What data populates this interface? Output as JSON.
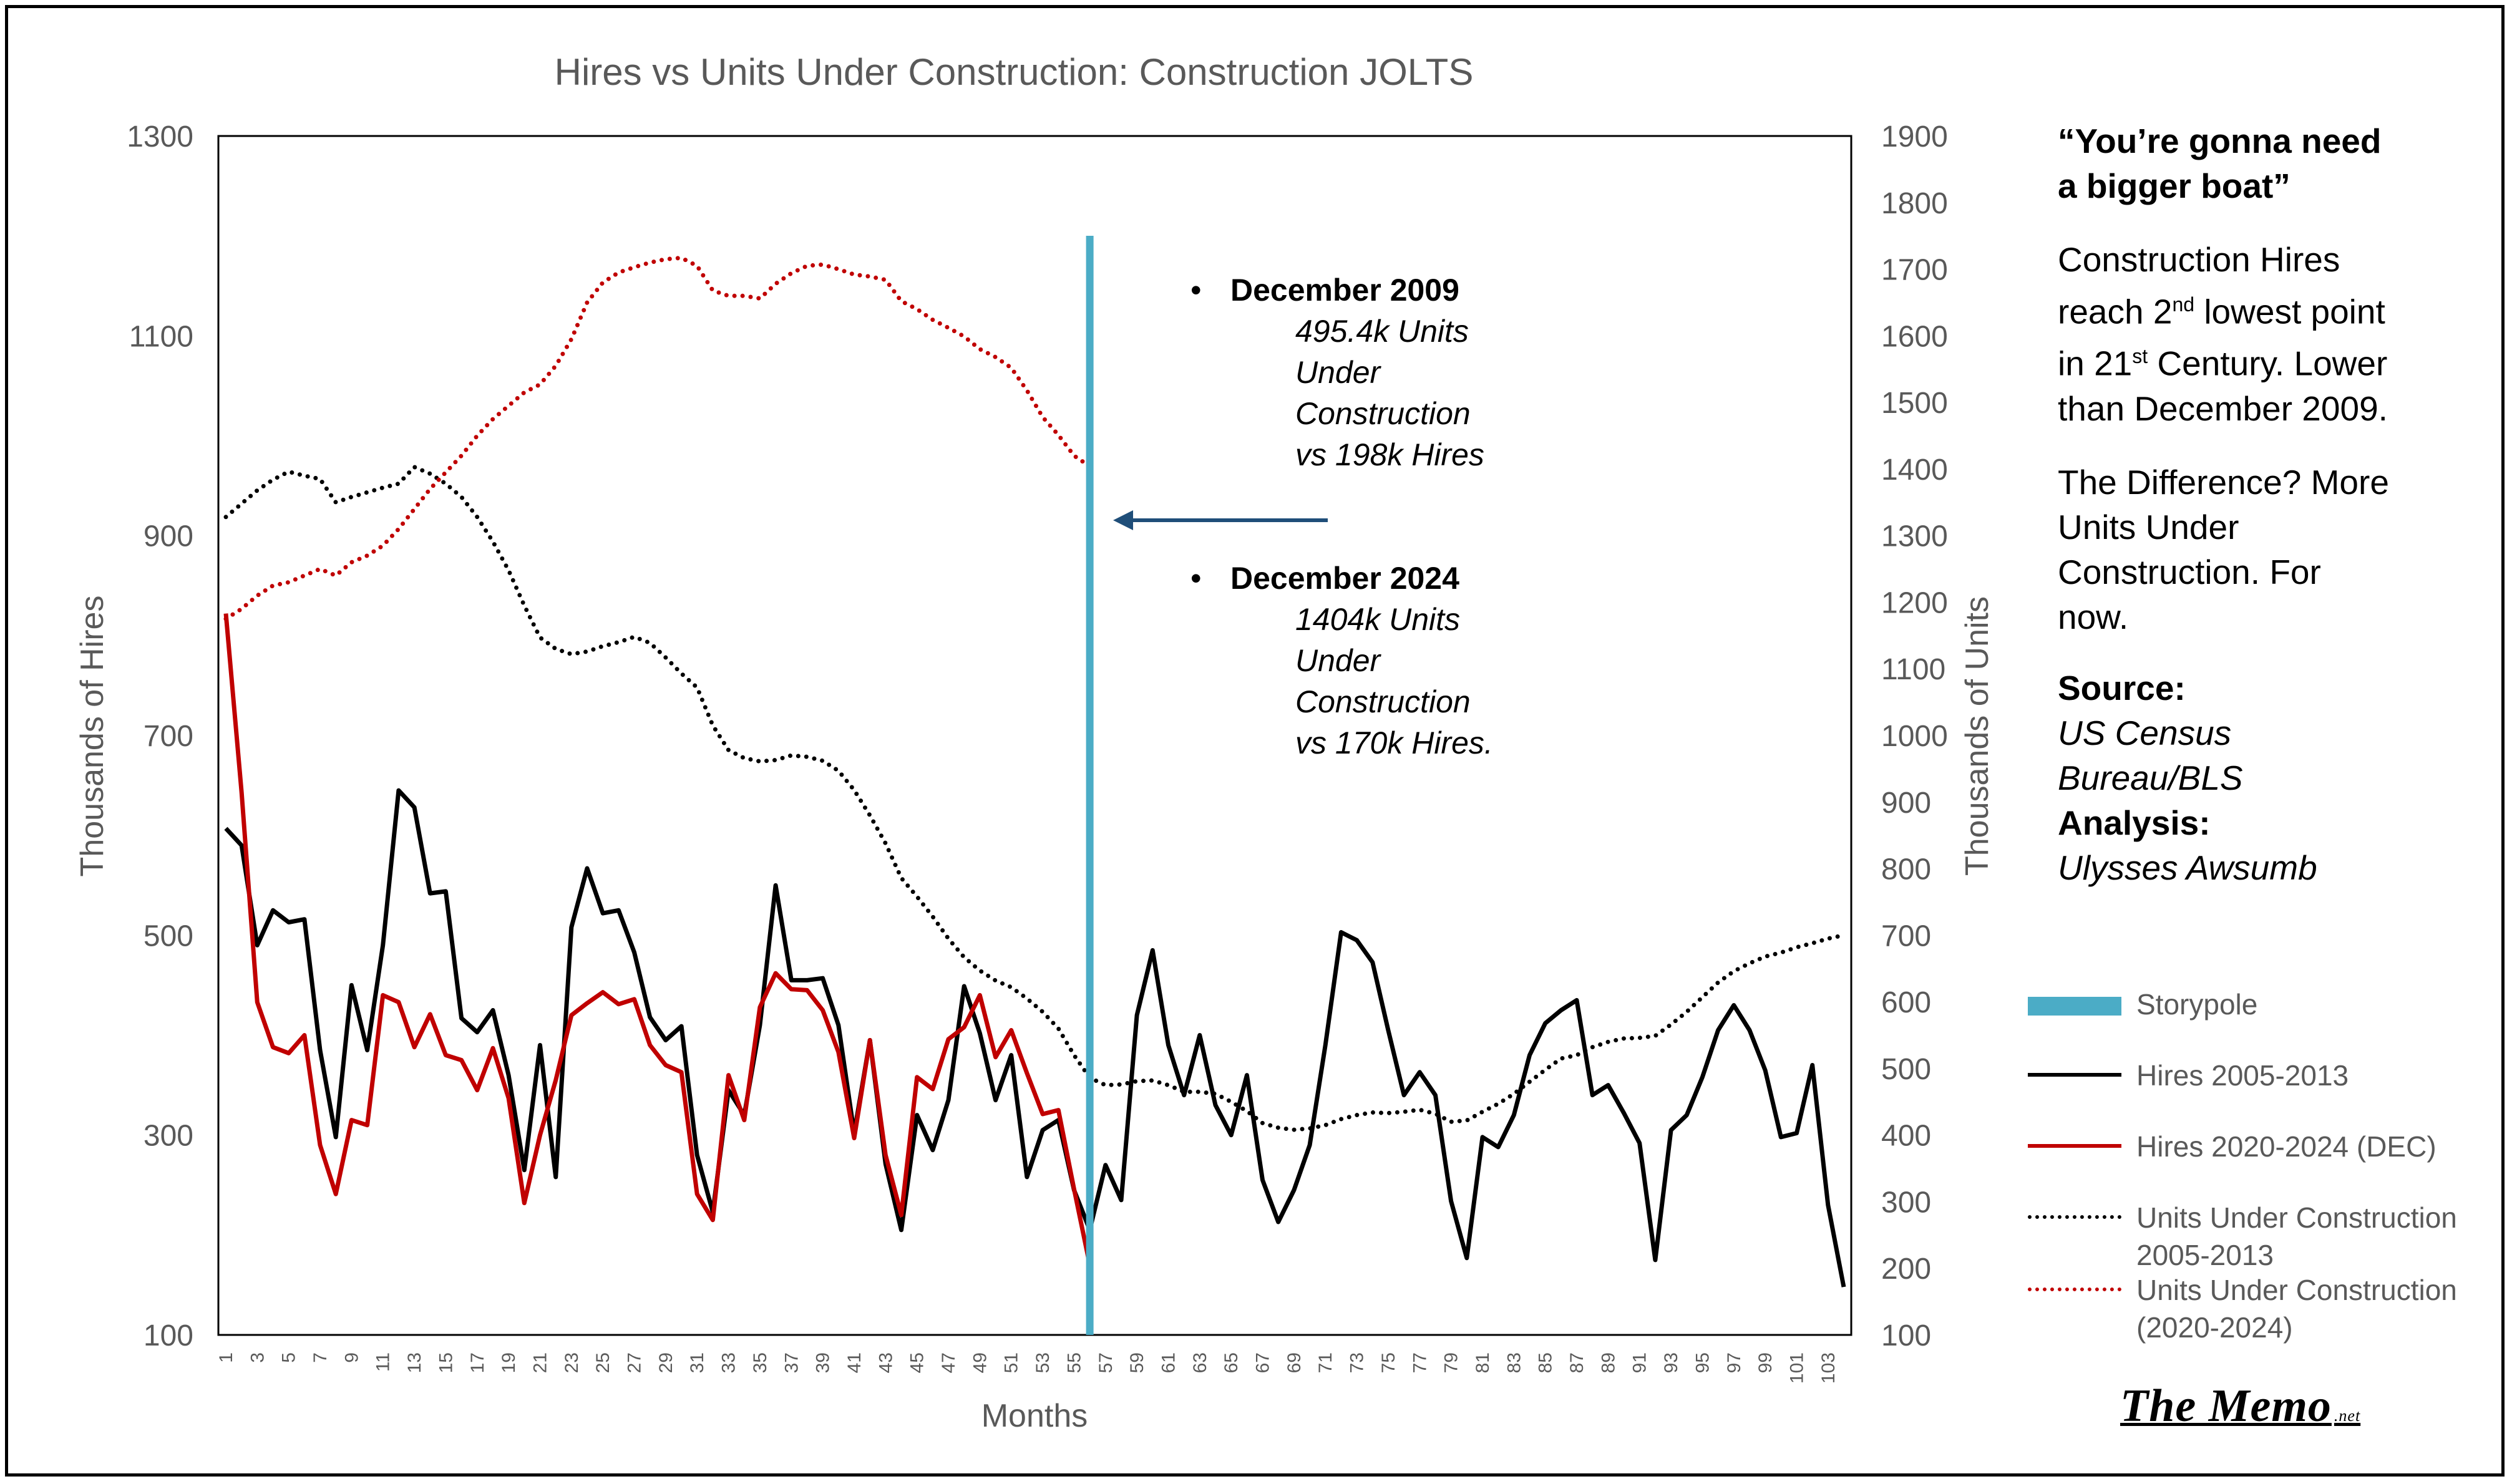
{
  "chart_data": {
    "type": "line",
    "title": "Hires vs Units Under Construction: Construction JOLTS",
    "xlabel": "Months",
    "ylabel": "Thousands of Hires",
    "y2label": "Thousands of Units",
    "x_range": [
      1,
      104
    ],
    "x_tick_labels": [
      "1",
      "3",
      "5",
      "7",
      "9",
      "11",
      "13",
      "15",
      "17",
      "19",
      "21",
      "23",
      "25",
      "27",
      "29",
      "31",
      "33",
      "35",
      "37",
      "39",
      "41",
      "43",
      "45",
      "47",
      "49",
      "51",
      "53",
      "55",
      "57",
      "59",
      "61",
      "63",
      "65",
      "67",
      "69",
      "71",
      "73",
      "75",
      "77",
      "79",
      "81",
      "83",
      "85",
      "87",
      "89",
      "91",
      "93",
      "95",
      "97",
      "99",
      "101",
      "103"
    ],
    "ylim": [
      100,
      1300
    ],
    "y_ticks": [
      "100",
      "300",
      "500",
      "700",
      "900",
      "1100",
      "1300"
    ],
    "y2lim": [
      100,
      1900
    ],
    "y2_ticks": [
      "100",
      "200",
      "300",
      "400",
      "500",
      "600",
      "700",
      "800",
      "900",
      "1000",
      "1100",
      "1200",
      "1300",
      "1400",
      "1500",
      "1600",
      "1700",
      "1800",
      "1900"
    ],
    "grid": false,
    "legend_position": "right",
    "storypole_x": 56,
    "series": [
      {
        "name": "Hires 2005-2013",
        "axis": "left",
        "style": "solid",
        "color": "#000000",
        "values": [
          607,
          590,
          490,
          525,
          513,
          516,
          385,
          298,
          450,
          385,
          490,
          645,
          628,
          542,
          544,
          417,
          403,
          425,
          360,
          265,
          390,
          258,
          508,
          567,
          522,
          525,
          483,
          418,
          395,
          409,
          280,
          223,
          345,
          320,
          410,
          550,
          455,
          455,
          457,
          410,
          302,
          395,
          271,
          205,
          320,
          285,
          335,
          449,
          402,
          335,
          380,
          258,
          305,
          315,
          245,
          205,
          270,
          235,
          420,
          485,
          390,
          340,
          400,
          330,
          300,
          360,
          255,
          213,
          245,
          290,
          390,
          503,
          495,
          473,
          405,
          340,
          363,
          340,
          234,
          177,
          298,
          288,
          320,
          380,
          412,
          425,
          435,
          340,
          350,
          322,
          292,
          175,
          305,
          320,
          358,
          405,
          430,
          405,
          365,
          298,
          302,
          370,
          230,
          148
        ]
      },
      {
        "name": "Hires 2020-2024 (DEC)",
        "axis": "left",
        "style": "solid",
        "color": "#C00000",
        "values": [
          822,
          643,
          433,
          388,
          382,
          400,
          290,
          241,
          315,
          310,
          440,
          433,
          388,
          421,
          380,
          375,
          345,
          387,
          337,
          232,
          300,
          355,
          420,
          432,
          443,
          431,
          436,
          390,
          370,
          363,
          241,
          215,
          360,
          315,
          428,
          462,
          446,
          445,
          425,
          383,
          297,
          395,
          280,
          220,
          358,
          346,
          396,
          408,
          440,
          378,
          405,
          362,
          321,
          325,
          246,
          170
        ]
      },
      {
        "name": "Units Under Construction 2005-2013",
        "axis": "right",
        "style": "dotted",
        "color": "#000000",
        "values": [
          1328,
          1348,
          1368,
          1384,
          1396,
          1390,
          1385,
          1350,
          1358,
          1365,
          1372,
          1378,
          1403,
          1393,
          1378,
          1358,
          1328,
          1291,
          1248,
          1195,
          1147,
          1130,
          1122,
          1126,
          1134,
          1140,
          1148,
          1139,
          1117,
          1093,
          1072,
          1015,
          978,
          966,
          961,
          963,
          970,
          968,
          962,
          947,
          918,
          880,
          838,
          786,
          758,
          728,
          695,
          667,
          647,
          632,
          622,
          605,
          585,
          560,
          520,
          486,
          475,
          476,
          481,
          482,
          475,
          465,
          465,
          462,
          450,
          436,
          418,
          411,
          408,
          410,
          415,
          424,
          430,
          434,
          433,
          435,
          438,
          432,
          420,
          422,
          435,
          447,
          462,
          480,
          498,
          515,
          520,
          532,
          540,
          545,
          546,
          549,
          566,
          585,
          607,
          629,
          646,
          658,
          668,
          674,
          682,
          688,
          695,
          700
        ]
      },
      {
        "name": "Units Under Construction (2020-2024)",
        "axis": "right",
        "style": "dotted",
        "color": "#C00000",
        "values": [
          1175,
          1190,
          1210,
          1225,
          1230,
          1240,
          1250,
          1240,
          1260,
          1270,
          1285,
          1310,
          1340,
          1370,
          1395,
          1420,
          1450,
          1475,
          1495,
          1515,
          1527,
          1555,
          1595,
          1650,
          1680,
          1695,
          1703,
          1710,
          1715,
          1717,
          1705,
          1668,
          1660,
          1660,
          1656,
          1678,
          1694,
          1705,
          1707,
          1700,
          1692,
          1689,
          1684,
          1652,
          1640,
          1624,
          1612,
          1599,
          1580,
          1568,
          1552,
          1518,
          1478,
          1451,
          1420,
          1404
        ]
      }
    ],
    "annotations": {
      "dec2009_title": "December 2009",
      "dec2009_lines": [
        "495.4k Units",
        "Under",
        "Construction",
        "vs 198k Hires"
      ],
      "dec2024_title": "December 2024",
      "dec2024_lines": [
        "1404k Units",
        "Under",
        "Construction",
        "vs 170k Hires."
      ],
      "bullet": "•"
    }
  },
  "sidebar": {
    "quote_line1": "“You’re gonna need",
    "quote_line2": "a bigger boat”",
    "p1_l1": "Construction Hires",
    "p1_l2_pre": "reach 2",
    "p1_l2_sup": "nd",
    "p1_l2_post": " lowest point",
    "p1_l3_pre": "in 21",
    "p1_l3_sup": "st",
    "p1_l3_post": " Century. Lower",
    "p1_l4": "than December 2009.",
    "p2_l1": "The Difference? More",
    "p2_l2": "Units Under",
    "p2_l3": "Construction. For",
    "p2_l4": "now.",
    "source_label": "Source:",
    "source_l1": "US Census",
    "source_l2": "Bureau/BLS",
    "analysis_label": "Analysis:",
    "analysis_value": "Ulysses Awsumb"
  },
  "legend": {
    "storypole": "Storypole",
    "hires_2005": "Hires 2005-2013",
    "hires_2020": "Hires 2020-2024 (DEC)",
    "units_2005": "Units Under Construction 2005-2013",
    "units_2020": "Units Under Construction (2020-2024)"
  },
  "colors": {
    "storypole": "#4BACC6",
    "arrow": "#1F4E79",
    "red": "#C00000",
    "black": "#000000",
    "axis_text": "#595959"
  },
  "footer": {
    "brand": "The Memo",
    "brand_suffix": ".net"
  }
}
